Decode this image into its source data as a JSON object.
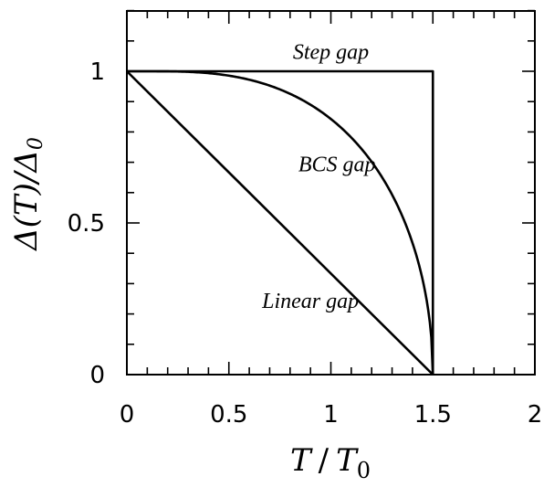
{
  "chart_data": {
    "type": "line",
    "xlabel_main": "T",
    "xlabel_sep": "/",
    "xlabel_den": "T",
    "xlabel_sub": "0",
    "ylabel_text": "Δ(T)/Δ",
    "ylabel_sub": "0",
    "xlim": [
      0,
      2
    ],
    "ylim": [
      0,
      1.2
    ],
    "xticks": [
      0,
      0.5,
      1,
      1.5,
      2
    ],
    "xtick_labels": [
      "0",
      "0.5",
      "1",
      "1.5",
      "2"
    ],
    "yticks": [
      0,
      0.5,
      1
    ],
    "ytick_labels": [
      "0",
      "0.5",
      "1"
    ],
    "grid": false,
    "legend": "none",
    "series": [
      {
        "name": "Step gap",
        "x": [
          0,
          1.5,
          1.5
        ],
        "y": [
          1,
          1,
          0
        ],
        "label_at": [
          1.0,
          1.04
        ]
      },
      {
        "name": "BCS gap",
        "tc": 1.5,
        "samples": 200,
        "label_at": [
          1.03,
          0.67
        ]
      },
      {
        "name": "Linear gap",
        "x": [
          0,
          1.5
        ],
        "y": [
          1,
          0
        ],
        "label_at": [
          0.9,
          0.22
        ]
      }
    ]
  }
}
